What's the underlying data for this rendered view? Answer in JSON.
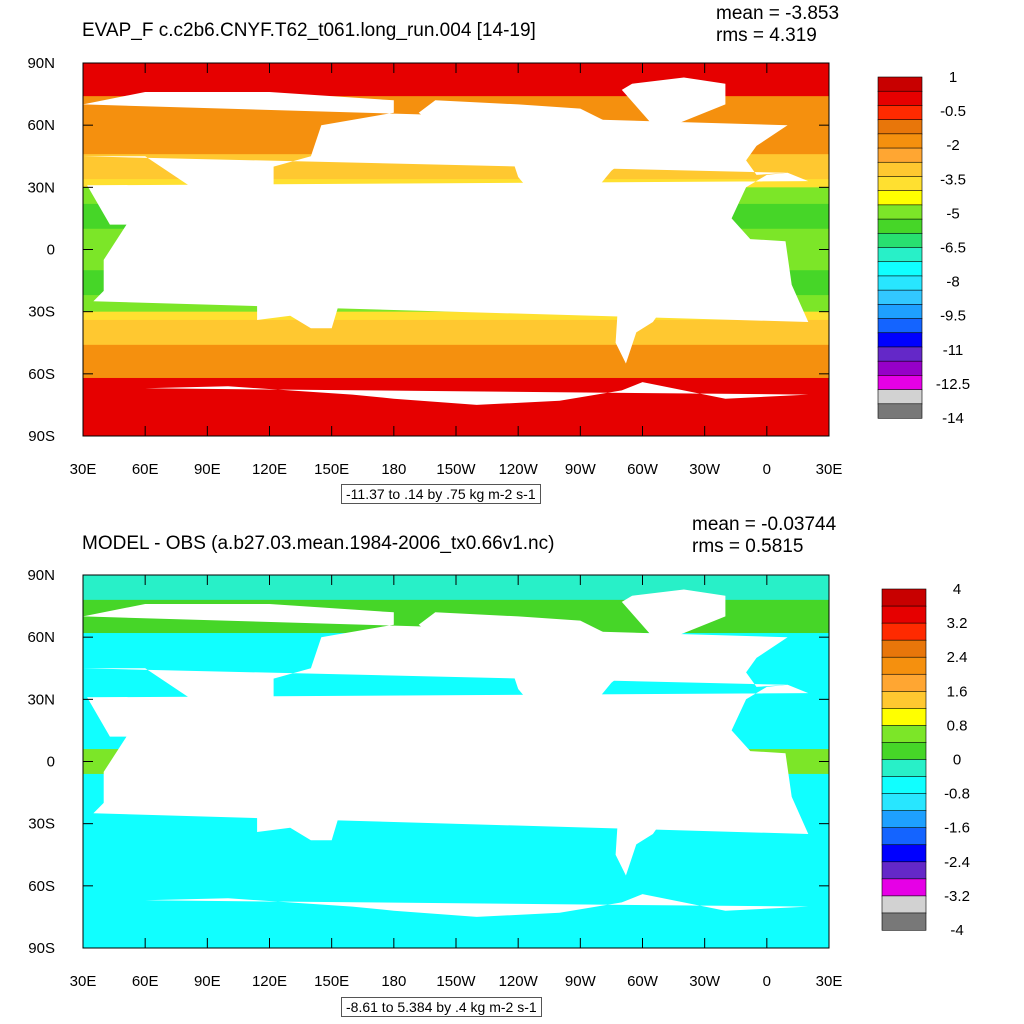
{
  "panels": [
    {
      "title": "EVAP_F c.c2b6.CNYF.T62_t061.long_run.004 [14-19]",
      "mean": "mean = -3.853",
      "rms": "rms = 4.319",
      "range_text": "-11.37 to .14 by .75 kg m-2 s-1",
      "colorbar_labels": [
        "1",
        "-0.5",
        "-2",
        "-3.5",
        "-5",
        "-6.5",
        "-8",
        "-9.5",
        "-11",
        "-12.5",
        "-14"
      ],
      "colorbar_colors": [
        "#c80000",
        "#e60000",
        "#ff2a00",
        "#e8760a",
        "#f5900e",
        "#ffa632",
        "#ffc830",
        "#ffe030",
        "#ffff00",
        "#7ce628",
        "#46d628",
        "#28e070",
        "#28f0c8",
        "#10ffff",
        "#28e6ff",
        "#32c8ff",
        "#1ea0ff",
        "#1464ff",
        "#0000ff",
        "#6428c8",
        "#9600c8",
        "#e600e6",
        "#d2d2d2",
        "#787878"
      ]
    },
    {
      "title": "MODEL - OBS (a.b27.03.mean.1984-2006_tx0.66v1.nc)",
      "mean": "mean = -0.03744",
      "rms": "rms = 0.5815",
      "range_text": "-8.61 to 5.384 by .4 kg m-2 s-1",
      "colorbar_labels": [
        "4",
        "3.2",
        "2.4",
        "1.6",
        "0.8",
        "0",
        "-0.8",
        "-1.6",
        "-2.4",
        "-3.2",
        "-4"
      ],
      "colorbar_colors": [
        "#c80000",
        "#e60000",
        "#ff2a00",
        "#e8760a",
        "#f5900e",
        "#ffa632",
        "#ffc830",
        "#ffff00",
        "#7ce628",
        "#46d628",
        "#28f0c8",
        "#10ffff",
        "#28e6ff",
        "#1ea0ff",
        "#1464ff",
        "#0000ff",
        "#6428c8",
        "#e600e6",
        "#d2d2d2",
        "#787878"
      ]
    }
  ],
  "chart_data": [
    {
      "type": "heatmap",
      "title": "EVAP_F c.c2b6.CNYF.T62_t061.long_run.004 [14-19]",
      "x_tick_labels": [
        "30E",
        "60E",
        "90E",
        "120E",
        "150E",
        "180",
        "150W",
        "120W",
        "90W",
        "60W",
        "30W",
        "0",
        "30E"
      ],
      "y_tick_labels": [
        "90N",
        "60N",
        "30N",
        "0",
        "30S",
        "60S",
        "90S"
      ],
      "xlim": [
        30,
        390
      ],
      "ylim": [
        -90,
        90
      ],
      "mean": -3.853,
      "rms": 4.319,
      "contour_min": -11.37,
      "contour_max": 0.14,
      "contour_interval": 0.75,
      "units": "kg m-2 s-1",
      "colorbar_range": [
        -14,
        1
      ]
    },
    {
      "type": "heatmap",
      "title": "MODEL - OBS (a.b27.03.mean.1984-2006_tx0.66v1.nc)",
      "x_tick_labels": [
        "30E",
        "60E",
        "90E",
        "120E",
        "150E",
        "180",
        "150W",
        "120W",
        "90W",
        "60W",
        "30W",
        "0",
        "30E"
      ],
      "y_tick_labels": [
        "90N",
        "60N",
        "30N",
        "0",
        "30S",
        "60S",
        "90S"
      ],
      "xlim": [
        30,
        390
      ],
      "ylim": [
        -90,
        90
      ],
      "mean": -0.03744,
      "rms": 0.5815,
      "contour_min": -8.61,
      "contour_max": 5.384,
      "contour_interval": 0.4,
      "units": "kg m-2 s-1",
      "colorbar_range": [
        -4,
        4
      ]
    }
  ]
}
